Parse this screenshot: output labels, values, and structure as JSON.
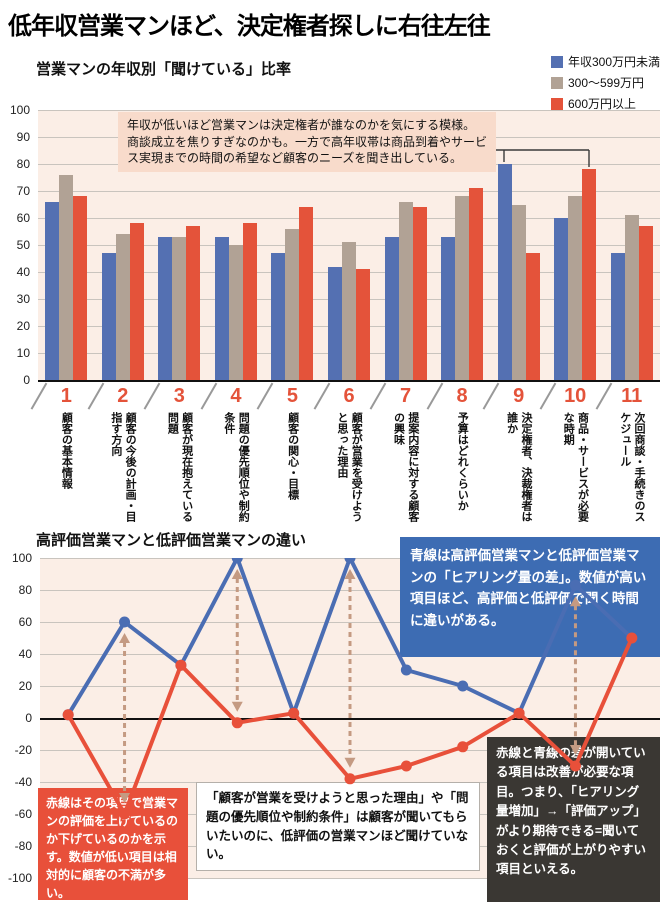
{
  "page": {
    "title": "低年収営業マンほど、決定権者探しに右往左往"
  },
  "chart_data": [
    {
      "type": "bar",
      "title": "営業マンの年収別「聞けている」比率",
      "ylim": [
        0,
        100
      ],
      "yticks": [
        100,
        90,
        80,
        70,
        60,
        50,
        40,
        30,
        20,
        10,
        0
      ],
      "grid": true,
      "legend_position": "top-right",
      "categories": [
        {
          "number": "1",
          "label": "顧客の基本情報"
        },
        {
          "number": "2",
          "label": "顧客の今後の計画・目指す方向"
        },
        {
          "number": "3",
          "label": "顧客が現在抱えている問題"
        },
        {
          "number": "4",
          "label": "問題の優先順位や制約条件"
        },
        {
          "number": "5",
          "label": "顧客の関心・目標"
        },
        {
          "number": "6",
          "label": "顧客が営業を受けようと思った理由"
        },
        {
          "number": "7",
          "label": "提案内容に対する顧客の興味"
        },
        {
          "number": "8",
          "label": "予算はどれくらいか"
        },
        {
          "number": "9",
          "label": "決定権者、決裁権者は誰か"
        },
        {
          "number": "10",
          "label": "商品・サービスが必要な時期"
        },
        {
          "number": "11",
          "label": "次回商談・手続きのスケジュール"
        }
      ],
      "series": [
        {
          "name": "年収300万円未満",
          "color": "#5470b2",
          "values": [
            66,
            47,
            53,
            53,
            47,
            42,
            53,
            53,
            80,
            60,
            47
          ]
        },
        {
          "name": "300〜599万円",
          "color": "#b1a295",
          "values": [
            76,
            54,
            53,
            50,
            56,
            51,
            66,
            68,
            65,
            68,
            61
          ]
        },
        {
          "name": "600万円以上",
          "color": "#e4533a",
          "values": [
            68,
            58,
            57,
            58,
            64,
            41,
            64,
            71,
            47,
            78,
            57
          ]
        }
      ],
      "annotation": "年収が低いほど営業マンは決定権者が誰なのかを気にする模様。商談成立を焦りすぎなのかも。一方で高年収帯は商品到着やサービス実現までの時間の希望など顧客のニーズを聞き出している。"
    },
    {
      "type": "line",
      "title": "高評価営業マンと低評価営業マンの違い",
      "ylim": [
        -100,
        100
      ],
      "yticks": [
        100,
        80,
        60,
        40,
        20,
        0,
        -20,
        -40,
        -60,
        -80,
        -100
      ],
      "grid": true,
      "x": [
        1,
        2,
        3,
        4,
        5,
        6,
        7,
        8,
        9,
        10,
        11
      ],
      "series": [
        {
          "name": "青線（ヒアリング量の差）",
          "color": "#4a6db3",
          "values": [
            2,
            60,
            33,
            100,
            3,
            100,
            30,
            20,
            3,
            83,
            50
          ]
        },
        {
          "name": "赤線（評価の上下）",
          "color": "#e8503a",
          "values": [
            2,
            -60,
            33,
            -3,
            3,
            -38,
            -30,
            -18,
            3,
            -30,
            50
          ]
        }
      ],
      "gap_arrow_x": [
        2,
        4,
        6,
        10
      ],
      "arrow_color": "#c49a82",
      "annotations": {
        "blue_box": "青線は高評価営業マンと低評価営業マンの「ヒアリング量の差」。数値が高い項目ほど、高評価と低評価で聞く時間に違いがある。",
        "red_box": "赤線はその項目で営業マンの評価を上げているのか下げているのかを示す。数値が低い項目は相対的に顧客の不満が多い。",
        "white_box": "「顧客が営業を受けようと思った理由」や「問題の優先順位や制約条件」は顧客が聞いてもらいたいのに、低評価の営業マンほど聞けていない。",
        "dark_box": "赤線と青線の差が開いている項目は改善が必要な項目。つまり、「ヒアリング量増加」→「評価アップ」がより期待できる=聞いておくと評価が上がりやすい項目といえる。"
      }
    }
  ]
}
